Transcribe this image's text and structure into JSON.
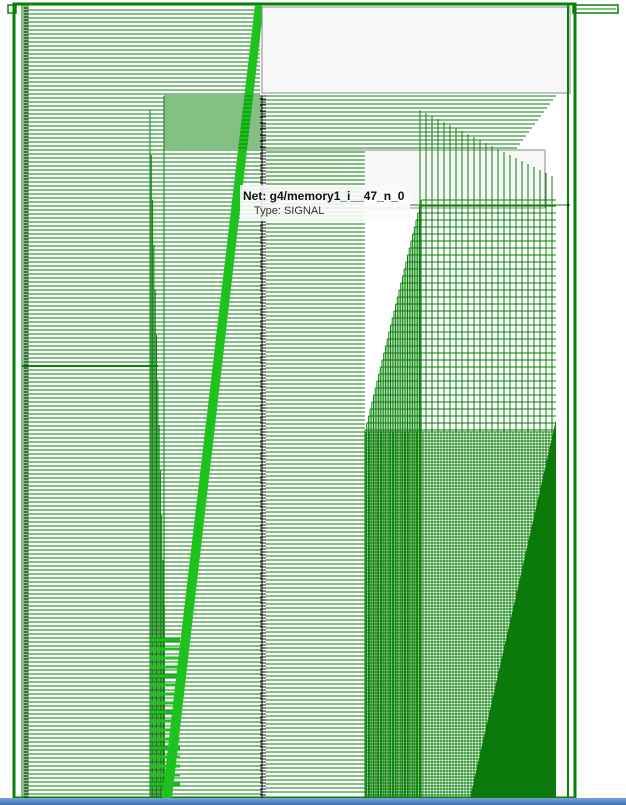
{
  "tooltip": {
    "title": "Net: g4/memory1_i__47_n_0",
    "type_line": "Type: SIGNAL"
  },
  "colors": {
    "wire": "#0a800a",
    "wire_highlight": "#1ec21e",
    "pin": "#111111",
    "background": "#ffffff",
    "cell_fill": "#f7f7f7",
    "bottom_bar": "#4f7fc0"
  },
  "icons": {
    "top_left_port": "port-icon",
    "top_right_port": "port-icon"
  }
}
